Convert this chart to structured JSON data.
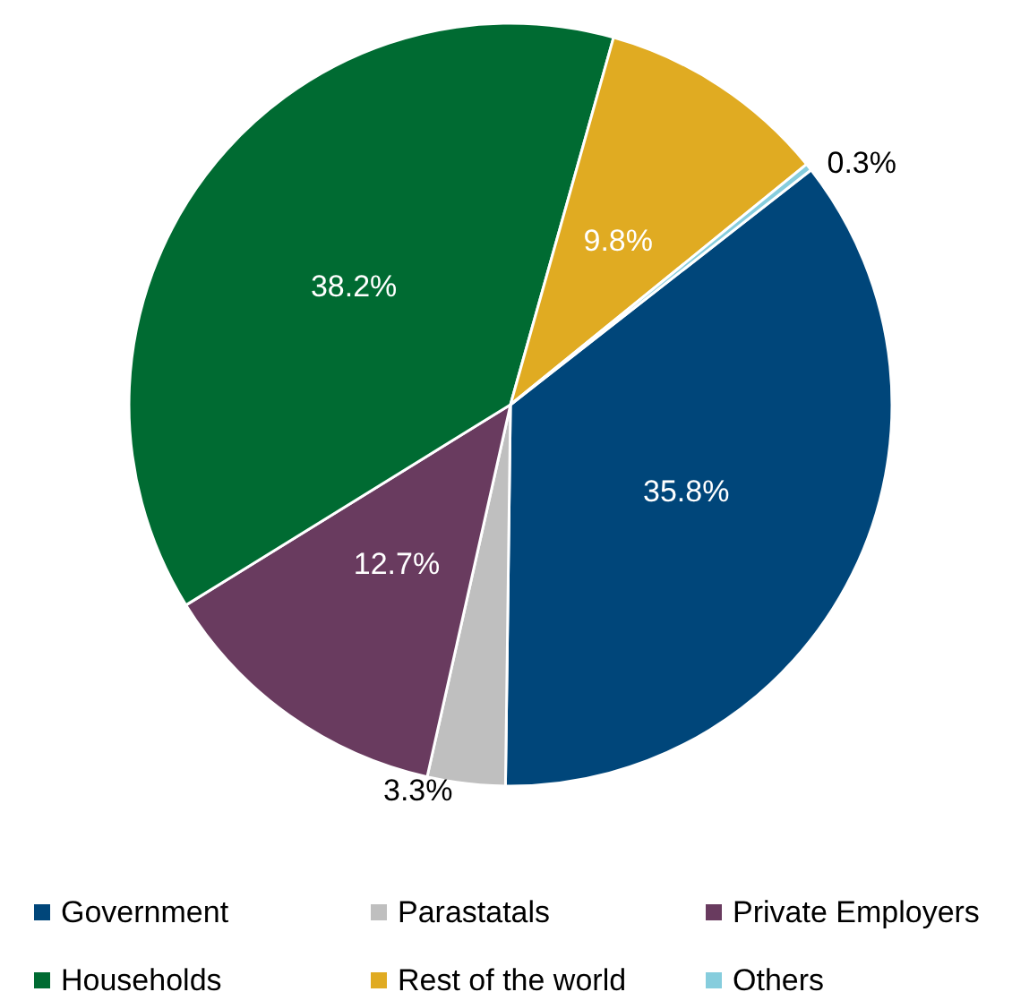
{
  "chart_data": {
    "type": "pie",
    "categories": [
      "Government",
      "Parastatals",
      "Private Employers",
      "Households",
      "Rest of the world",
      "Others"
    ],
    "values": [
      35.8,
      3.3,
      12.7,
      38.2,
      9.8,
      0.3
    ],
    "colors": [
      "#00467a",
      "#bfbfbf",
      "#693b5f",
      "#006b32",
      "#e0ab22",
      "#86cddd"
    ],
    "value_labels": [
      "35.8%",
      "3.3%",
      "12.7%",
      "38.2%",
      "9.8%",
      "0.3%"
    ],
    "legend": "bottom"
  }
}
